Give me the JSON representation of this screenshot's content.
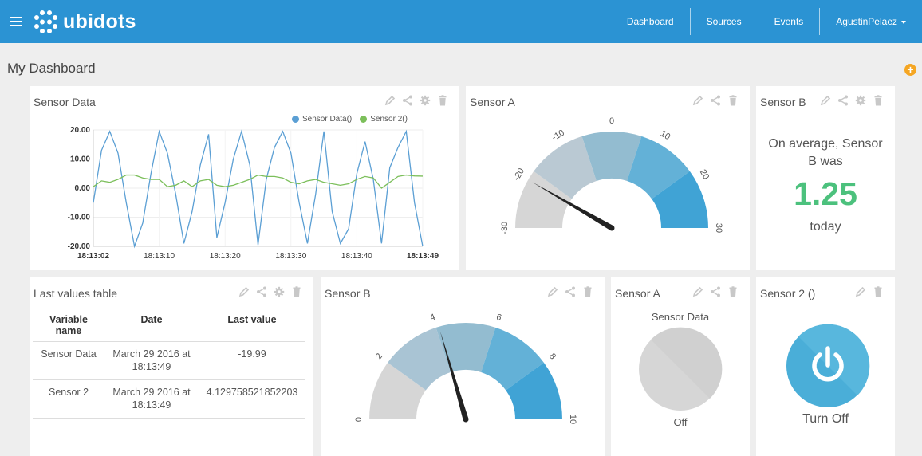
{
  "app": {
    "logo_text": "ubidots",
    "nav": {
      "dashboard": "Dashboard",
      "sources": "Sources",
      "events": "Events",
      "user": "AgustinPelaez"
    },
    "brand_color": "#2b93d3"
  },
  "page": {
    "title": "My Dashboard",
    "add_button": "+"
  },
  "widgets": {
    "sensor_data_chart": {
      "title": "Sensor Data",
      "legend": [
        {
          "label": "Sensor Data()",
          "color": "#5b9fd4"
        },
        {
          "label": "Sensor 2()",
          "color": "#7cbf5b"
        }
      ]
    },
    "sensor_a_gauge": {
      "title": "Sensor A"
    },
    "sensor_b_stat": {
      "title": "Sensor B",
      "label": "On average, Sensor B was",
      "value": "1.25",
      "period": "today"
    },
    "last_values_table": {
      "title": "Last values table",
      "columns": [
        "Variable name",
        "Date",
        "Last value"
      ],
      "rows": [
        [
          "Sensor Data",
          "March 29 2016 at 18:13:49",
          "-19.99"
        ],
        [
          "Sensor 2",
          "March 29 2016 at 18:13:49",
          "4.129758521852203"
        ]
      ]
    },
    "sensor_b_gauge": {
      "title": "Sensor B"
    },
    "sensor_a_indicator": {
      "title": "Sensor A",
      "variable": "Sensor Data",
      "state": "Off"
    },
    "sensor_2_switch": {
      "title": "Sensor 2 ()",
      "state_label": "Turn Off"
    }
  },
  "chart_data": [
    {
      "type": "line",
      "x_labels": [
        "18:13:02",
        "18:13:10",
        "18:13:20",
        "18:13:30",
        "18:13:40",
        "18:13:49"
      ],
      "y_ticks": [
        "20.00",
        "10.00",
        "0.00",
        "-10.00",
        "-20.00"
      ],
      "ylim": [
        -20,
        20
      ],
      "grid": true,
      "legend_position": "top-right",
      "series": [
        {
          "name": "Sensor Data()",
          "color": "#5b9fd4",
          "values": [
            -5,
            13,
            19.5,
            12,
            -5,
            -20,
            -12,
            5,
            19.5,
            12,
            -2,
            -19,
            -8,
            8,
            18.5,
            -17,
            -5,
            10,
            19.5,
            8,
            -19.5,
            3,
            14,
            19.5,
            12,
            -5,
            -19,
            -2,
            19.5,
            -8,
            -19,
            -14,
            5,
            16,
            3,
            -19,
            7,
            14,
            19.5,
            -5,
            -19.99
          ]
        },
        {
          "name": "Sensor 2()",
          "color": "#7cbf5b",
          "values": [
            0.5,
            2.5,
            2,
            3,
            4.5,
            4.5,
            3.5,
            3,
            3,
            0.5,
            1,
            2.5,
            0.5,
            2.5,
            3,
            1,
            0.5,
            1,
            2,
            3,
            4.5,
            4,
            4,
            3.5,
            2,
            1.5,
            2.5,
            3,
            2,
            1.5,
            1,
            1.5,
            3,
            4,
            3.5,
            0,
            2,
            4,
            4.5,
            4.2,
            4.13
          ]
        }
      ]
    },
    {
      "type": "gauge",
      "name": "Sensor A",
      "ticks": [
        -30,
        -20,
        -10,
        0,
        10,
        20,
        30
      ],
      "range": [
        -30,
        30
      ],
      "value": -20
    },
    {
      "type": "gauge",
      "name": "Sensor B",
      "ticks": [
        0,
        2,
        4,
        6,
        8,
        10
      ],
      "range": [
        0,
        10
      ],
      "value": 4.1
    }
  ]
}
